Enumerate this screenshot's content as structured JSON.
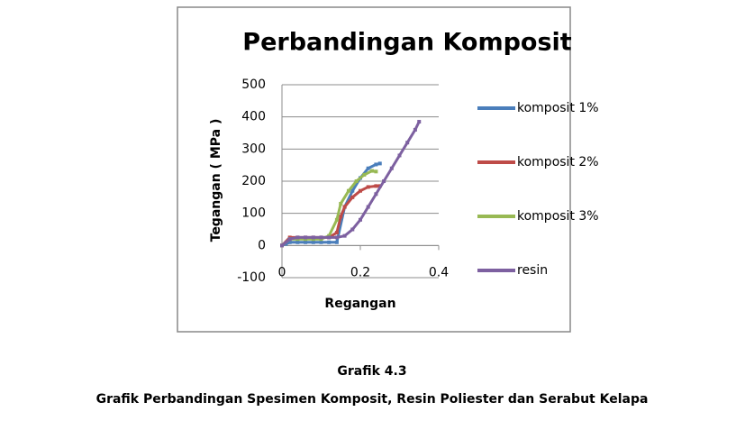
{
  "chart_data": {
    "type": "line",
    "title": "Perbandingan Komposit",
    "x_label": "Regangan",
    "y_label": "Tegangan ( MPa )",
    "xlim": [
      0,
      0.4
    ],
    "xticks": [
      0,
      0.2,
      0.4
    ],
    "ylim": [
      -100,
      500
    ],
    "yticks": [
      -100,
      0,
      100,
      200,
      300,
      400,
      500
    ],
    "grid": true,
    "legend": "right",
    "series": [
      {
        "name": "komposit 1%",
        "color": "#4a7ebb",
        "x": [
          0,
          0.01,
          0.02,
          0.04,
          0.06,
          0.08,
          0.1,
          0.12,
          0.14,
          0.16,
          0.18,
          0.2,
          0.22,
          0.24,
          0.25
        ],
        "values": [
          0,
          5,
          10,
          10,
          10,
          10,
          10,
          10,
          10,
          120,
          170,
          210,
          240,
          252,
          255
        ]
      },
      {
        "name": "komposit 2%",
        "color": "#be4b48",
        "x": [
          0,
          0.02,
          0.04,
          0.06,
          0.08,
          0.1,
          0.12,
          0.14,
          0.15,
          0.16,
          0.18,
          0.2,
          0.22,
          0.24,
          0.25
        ],
        "values": [
          0,
          25,
          25,
          25,
          25,
          25,
          25,
          40,
          90,
          120,
          150,
          170,
          182,
          185,
          185
        ]
      },
      {
        "name": "komposit 3%",
        "color": "#98b954",
        "x": [
          0,
          0.02,
          0.04,
          0.06,
          0.08,
          0.1,
          0.12,
          0.14,
          0.15,
          0.17,
          0.19,
          0.21,
          0.23,
          0.24
        ],
        "values": [
          0,
          20,
          20,
          20,
          20,
          20,
          30,
          80,
          130,
          170,
          200,
          220,
          232,
          230
        ]
      },
      {
        "name": "resin",
        "color": "#7d60a0",
        "x": [
          0,
          0.02,
          0.04,
          0.06,
          0.08,
          0.1,
          0.12,
          0.14,
          0.16,
          0.18,
          0.2,
          0.22,
          0.24,
          0.26,
          0.28,
          0.3,
          0.32,
          0.34,
          0.35
        ],
        "values": [
          0,
          20,
          25,
          25,
          25,
          25,
          25,
          25,
          30,
          50,
          80,
          120,
          160,
          200,
          240,
          280,
          320,
          360,
          385
        ]
      }
    ]
  },
  "caption": {
    "label": "Grafik 4.3",
    "text": "Grafik Perbandingan Spesimen Komposit, Resin Poliester dan Serabut Kelapa"
  }
}
